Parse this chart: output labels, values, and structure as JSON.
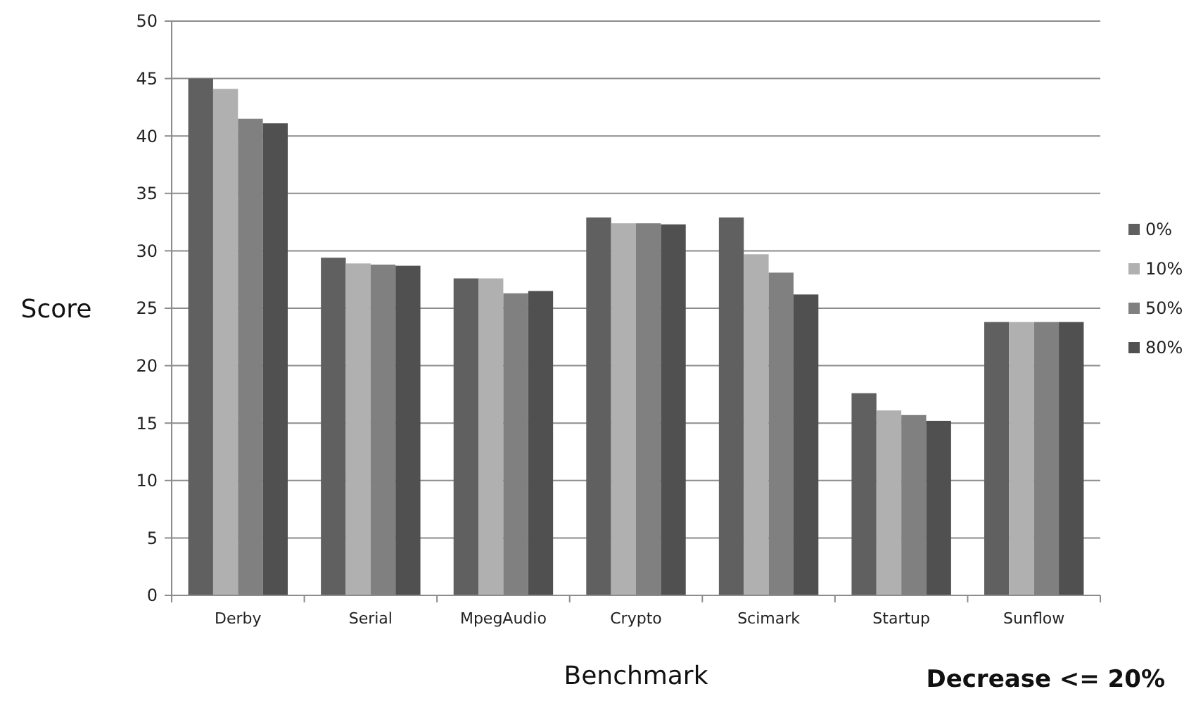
{
  "chart_data": {
    "type": "bar",
    "xlabel": "Benchmark",
    "ylabel": "Score",
    "annotations": [
      "Decrease <= 20%"
    ],
    "categories": [
      "Derby",
      "Serial",
      "MpegAudio",
      "Crypto",
      "Scimark",
      "Startup",
      "Sunflow"
    ],
    "series": [
      {
        "name": "0%",
        "color": "#606060",
        "values": [
          45,
          29.4,
          27.6,
          32.9,
          32.9,
          17.6,
          23.8
        ]
      },
      {
        "name": "10%",
        "color": "#b0b0b0",
        "values": [
          44.1,
          28.9,
          27.6,
          32.4,
          29.7,
          16.1,
          23.8
        ]
      },
      {
        "name": "50%",
        "color": "#808080",
        "values": [
          41.5,
          28.8,
          26.3,
          32.4,
          28.1,
          15.7,
          23.8
        ]
      },
      {
        "name": "80%",
        "color": "#505050",
        "values": [
          41.1,
          28.7,
          26.5,
          32.3,
          26.2,
          15.2,
          23.8
        ]
      }
    ],
    "ylim": [
      0,
      50
    ],
    "yticks": [
      0,
      5,
      10,
      15,
      20,
      25,
      30,
      35,
      40,
      45,
      50
    ],
    "grid": "y",
    "legend": "right"
  }
}
